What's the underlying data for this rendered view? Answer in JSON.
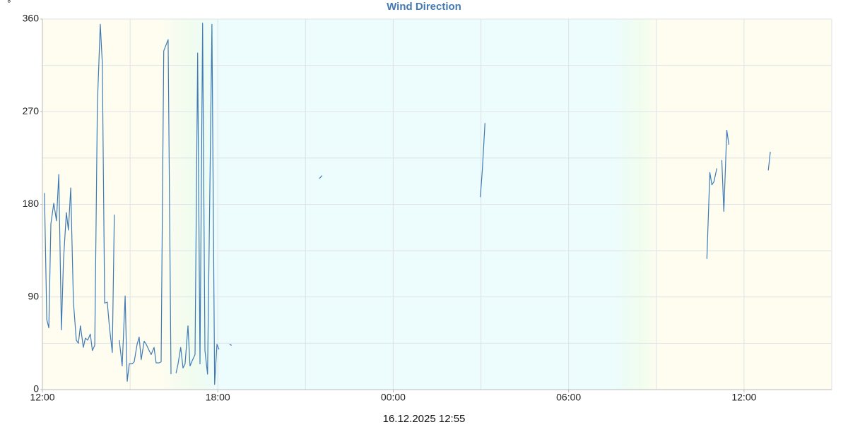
{
  "chart_data": {
    "type": "line",
    "title": "Wind Direction",
    "y_unit": "°",
    "footer": "16.12.2025 12:55",
    "xlim": [
      0,
      27
    ],
    "xticks": [
      {
        "value": 0,
        "label": "12:00"
      },
      {
        "value": 6,
        "label": "18:00"
      },
      {
        "value": 12,
        "label": "00:00"
      },
      {
        "value": 18,
        "label": "06:00"
      },
      {
        "value": 24,
        "label": "12:00"
      }
    ],
    "xgrid": [
      3,
      6,
      9,
      12,
      15,
      18,
      21,
      24
    ],
    "ylim": [
      0,
      360
    ],
    "yticks": [
      0,
      90,
      180,
      270,
      360
    ],
    "ygrid": [
      45,
      90,
      135,
      180,
      225,
      270,
      315,
      360
    ],
    "grid": true,
    "series": [
      {
        "name": "Wind Direction",
        "color": "#3f7ab5",
        "x": [
          0.07,
          0.15,
          0.22,
          0.29,
          0.39,
          0.48,
          0.56,
          0.65,
          0.72,
          0.82,
          0.89,
          0.97,
          1.06,
          1.16,
          1.23,
          1.3,
          1.4,
          1.47,
          1.55,
          1.64,
          1.71,
          1.79,
          1.88,
          1.98,
          2.05,
          2.13,
          2.22,
          2.29,
          2.39,
          2.46,
          2.55,
          2.63,
          2.73,
          2.83,
          2.9,
          2.97,
          3.07,
          3.14,
          3.24,
          3.31,
          3.38,
          3.48,
          3.55,
          3.65,
          3.72,
          3.82,
          3.89,
          3.99,
          4.06,
          4.15,
          4.3,
          4.4,
          4.48,
          4.57,
          4.64,
          4.73,
          4.81,
          4.88,
          4.98,
          5.05,
          5.14,
          5.22,
          5.31,
          5.39,
          5.48,
          5.56,
          5.65,
          5.8,
          5.89,
          5.97,
          6.04,
          6.2,
          6.4,
          6.47,
          8.0,
          9.47,
          9.57,
          12.0,
          14.98,
          15.05,
          15.14,
          19.0,
          22.73,
          22.83,
          22.9,
          22.97,
          23.07,
          23.15,
          23.24,
          23.31,
          23.41,
          23.48,
          24.0,
          24.83,
          24.9
        ],
        "values": [
          191,
          68,
          60,
          161,
          181,
          164,
          209,
          58,
          125,
          172,
          155,
          196,
          85,
          48,
          45,
          62,
          41,
          50,
          48,
          54,
          38,
          43,
          277,
          355,
          317,
          84,
          85,
          62,
          36,
          170,
          null,
          48,
          23,
          91,
          8,
          25,
          25,
          27,
          44,
          51,
          29,
          47,
          44,
          38,
          34,
          41,
          26,
          26,
          27,
          329,
          340,
          15,
          null,
          16,
          25,
          41,
          21,
          25,
          62,
          23,
          29,
          34,
          327,
          25,
          356,
          38,
          15,
          355,
          5,
          44,
          39,
          null,
          44,
          43,
          null,
          205,
          208,
          null,
          187,
          214,
          259,
          null,
          127,
          211,
          199,
          202,
          215,
          null,
          223,
          173,
          252,
          238,
          null,
          213,
          231
        ]
      }
    ]
  }
}
